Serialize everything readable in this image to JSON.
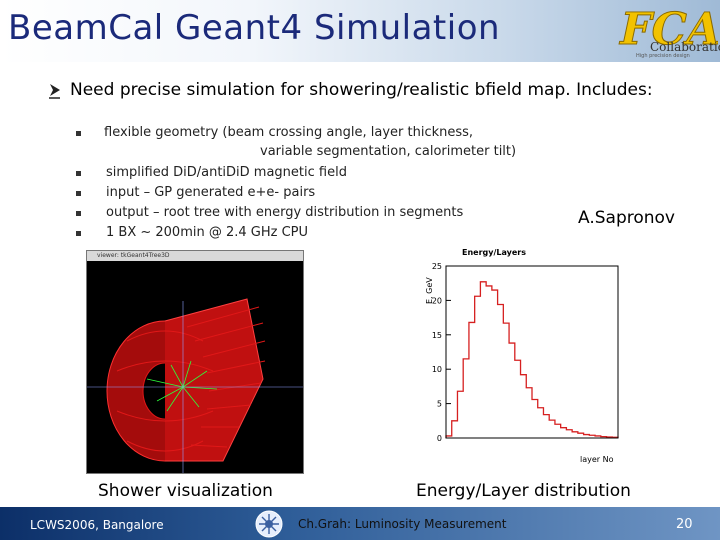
{
  "slide": {
    "title": "BeamCal Geant4 Simulation",
    "logo_text": "Collaboration",
    "logo_subtext": "High precision design",
    "main_point": "Need precise simulation for showering/realistic bfield map. Includes:",
    "sub_points": [
      "flexible geometry (beam crossing angle, layer thickness,",
      "variable segmentation, calorimeter tilt)",
      "simplified DiD/antiDiD magnetic field",
      "input – GP generated e+e- pairs",
      "output – root tree with energy distribution in segments",
      "1 BX ~ 200min @ 2.4 GHz CPU"
    ],
    "author": "A.Sapronov",
    "sim_window_title": "viewer: tkGeant4Tree3D",
    "caption_left": "Shower visualization",
    "caption_right": "Energy/Layer distribution"
  },
  "footer": {
    "left": "LCWS2006, Bangalore",
    "middle": "Ch.Grah: Luminosity Measurement",
    "page": "20"
  },
  "colors": {
    "title": "#1b2a7a",
    "footer": "#0c2f68",
    "histogram": "#d62020"
  },
  "chart_data": {
    "type": "bar",
    "title": "Energy/Layers",
    "xlabel": "layer No",
    "ylabel": "E, GeV",
    "ylim": [
      0,
      25
    ],
    "xlim": [
      0,
      30
    ],
    "yticks": [
      "0",
      "5",
      "10",
      "15",
      "20",
      "25"
    ],
    "grid": false,
    "values": [
      0.3,
      2.5,
      6.8,
      11.5,
      16.8,
      20.6,
      22.7,
      22.1,
      21.5,
      19.4,
      16.7,
      13.8,
      11.3,
      9.2,
      7.3,
      5.6,
      4.4,
      3.4,
      2.6,
      2.0,
      1.5,
      1.2,
      0.9,
      0.7,
      0.5,
      0.4,
      0.3,
      0.2,
      0.15,
      0.1
    ]
  }
}
